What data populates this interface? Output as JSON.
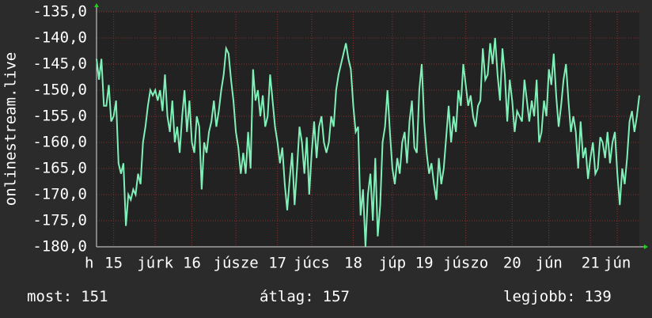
{
  "chart_data": {
    "type": "line",
    "ylabel": "onlinestream.live",
    "color": "#7ff0b8",
    "grid": true,
    "ylim": [
      -180,
      -135
    ],
    "yticks": [
      {
        "value": -135,
        "label": "-135,0"
      },
      {
        "value": -140,
        "label": "-140,0"
      },
      {
        "value": -145,
        "label": "-145,0"
      },
      {
        "value": -150,
        "label": "-150,0"
      },
      {
        "value": -155,
        "label": "-155,0"
      },
      {
        "value": -160,
        "label": "-160,0"
      },
      {
        "value": -165,
        "label": "-165,0"
      },
      {
        "value": -170,
        "label": "-170,0"
      },
      {
        "value": -175,
        "label": "-175,0"
      },
      {
        "value": -180,
        "label": "-180,0"
      }
    ],
    "xlim": [
      0,
      222
    ],
    "xticks": [
      {
        "value": -3,
        "label": "h"
      },
      {
        "value": 7,
        "label": "15"
      },
      {
        "value": 24,
        "label": "júrk"
      },
      {
        "value": 39,
        "label": "16"
      },
      {
        "value": 57,
        "label": "júsze"
      },
      {
        "value": 74,
        "label": "17"
      },
      {
        "value": 88,
        "label": "júcs"
      },
      {
        "value": 105,
        "label": "18"
      },
      {
        "value": 121,
        "label": "júp"
      },
      {
        "value": 134,
        "label": "19"
      },
      {
        "value": 151,
        "label": "júszo"
      },
      {
        "value": 170,
        "label": "20"
      },
      {
        "value": 185,
        "label": "jún"
      },
      {
        "value": 202,
        "label": "21"
      },
      {
        "value": 213,
        "label": "jún"
      }
    ],
    "values": [
      -144,
      -148,
      -144,
      -153,
      -153,
      -149,
      -156,
      -155,
      -152,
      -164,
      -166,
      -164,
      -176,
      -170,
      -171,
      -169,
      -170,
      -166,
      -168,
      -160,
      -157,
      -153,
      -150,
      -151,
      -150,
      -152,
      -150,
      -154,
      -147,
      -155,
      -158,
      -152,
      -160,
      -157,
      -162,
      -155,
      -150,
      -158,
      -152,
      -160,
      -162,
      -155,
      -157,
      -169,
      -160,
      -162,
      -158,
      -156,
      -152,
      -157,
      -154,
      -150,
      -147,
      -142,
      -143,
      -148,
      -152,
      -158,
      -161,
      -166,
      -162,
      -166,
      -158,
      -165,
      -146,
      -152,
      -150,
      -155,
      -151,
      -157,
      -155,
      -147,
      -152,
      -157,
      -160,
      -164,
      -161,
      -168,
      -173,
      -167,
      -162,
      -172,
      -165,
      -157,
      -160,
      -166,
      -159,
      -170,
      -162,
      -156,
      -163,
      -157,
      -155,
      -160,
      -162,
      -160,
      -155,
      -157,
      -150,
      -147,
      -145,
      -143,
      -141,
      -144,
      -146,
      -153,
      -158,
      -157,
      -174,
      -169,
      -180,
      -170,
      -166,
      -175,
      -163,
      -178,
      -172,
      -160,
      -157,
      -150,
      -158,
      -165,
      -168,
      -163,
      -166,
      -160,
      -158,
      -164,
      -156,
      -152,
      -161,
      -162,
      -150,
      -145,
      -156,
      -162,
      -166,
      -164,
      -168,
      -171,
      -163,
      -168,
      -165,
      -159,
      -153,
      -160,
      -155,
      -158,
      -150,
      -153,
      -145,
      -149,
      -153,
      -151,
      -155,
      -157,
      -153,
      -152,
      -142,
      -148,
      -147,
      -141,
      -145,
      -140,
      -147,
      -152,
      -142,
      -147,
      -156,
      -148,
      -152,
      -158,
      -154,
      -155,
      -156,
      -148,
      -152,
      -156,
      -152,
      -155,
      -148,
      -160,
      -158,
      -152,
      -155,
      -146,
      -149,
      -143,
      -151,
      -157,
      -153,
      -148,
      -145,
      -152,
      -158,
      -155,
      -158,
      -165,
      -156,
      -163,
      -161,
      -167,
      -163,
      -160,
      -166,
      -165,
      -159,
      -160,
      -163,
      -158,
      -164,
      -160,
      -158,
      -166,
      -172,
      -165,
      -168,
      -163,
      -156,
      -154,
      -158,
      -155,
      -151
    ],
    "stats": [
      {
        "label": "most:",
        "value": 151
      },
      {
        "label": "átlag:",
        "value": 157
      },
      {
        "label": "legjobb:",
        "value": 139
      }
    ]
  }
}
